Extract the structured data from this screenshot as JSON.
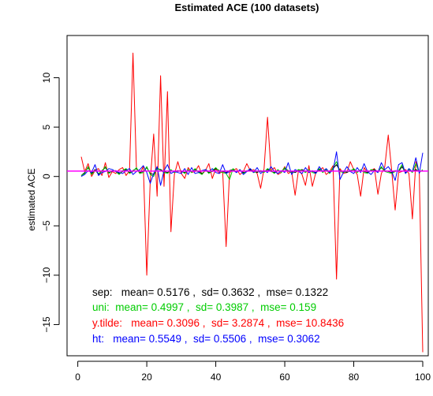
{
  "chart_data": {
    "type": "line",
    "title": "Estimated ACE (100 datasets)",
    "xlabel": "",
    "ylabel": "estimated ACE",
    "xlim": [
      1,
      100
    ],
    "ylim": [
      -18,
      13
    ],
    "x_ticks": [
      0,
      20,
      40,
      60,
      80,
      100
    ],
    "y_ticks": [
      -15,
      -10,
      -5,
      0,
      5,
      10
    ],
    "reference_line": {
      "y": 0.55,
      "color": "#ff00ff"
    },
    "series": [
      {
        "name": "sep",
        "color": "#000000",
        "values": [
          0.1,
          0.4,
          0.9,
          0.3,
          0.7,
          0.2,
          0.6,
          0.9,
          0.4,
          0.5,
          0.6,
          0.3,
          0.5,
          0.7,
          0.4,
          0.6,
          0.8,
          0.4,
          0.5,
          0.9,
          0.3,
          0.2,
          0.8,
          0.7,
          0.5,
          0.4,
          0.6,
          0.5,
          0.6,
          0.5,
          0.4,
          0.6,
          0.5,
          0.7,
          0.5,
          0.3,
          0.6,
          0.4,
          0.5,
          0.8,
          0.6,
          0.5,
          0.4,
          0.6,
          0.7,
          0.5,
          0.6,
          0.4,
          0.5,
          0.7,
          0.5,
          0.4,
          0.6,
          0.5,
          0.7,
          0.5,
          0.4,
          0.6,
          0.5,
          0.8,
          0.6,
          0.5,
          0.4,
          0.6,
          0.7,
          0.5,
          0.6,
          0.5,
          0.4,
          0.7,
          0.5,
          0.6,
          0.4,
          0.8,
          1.2,
          0.6,
          0.5,
          0.4,
          0.6,
          0.7,
          0.5,
          0.6,
          0.5,
          0.4,
          0.6,
          0.7,
          0.5,
          0.9,
          0.6,
          0.5,
          0.4,
          0.6,
          0.5,
          1.0,
          0.4,
          0.6,
          0.5,
          0.7,
          0.5,
          0.6
        ]
      },
      {
        "name": "uni",
        "color": "#00cc00",
        "values": [
          0.1,
          0.3,
          1.0,
          0.2,
          0.6,
          0.3,
          0.5,
          1.0,
          0.3,
          0.6,
          0.5,
          0.2,
          0.6,
          0.8,
          0.3,
          0.5,
          0.9,
          0.3,
          0.4,
          1.0,
          0.2,
          0.0,
          0.9,
          0.6,
          0.4,
          0.3,
          0.7,
          0.4,
          0.5,
          0.6,
          0.3,
          0.7,
          0.4,
          0.8,
          0.4,
          0.2,
          0.7,
          0.3,
          0.6,
          0.9,
          0.5,
          0.4,
          0.3,
          -0.3,
          0.8,
          0.4,
          0.7,
          0.3,
          0.6,
          0.6,
          0.4,
          0.5,
          0.5,
          0.4,
          0.8,
          0.6,
          0.3,
          0.7,
          0.4,
          0.9,
          0.5,
          0.4,
          0.5,
          0.7,
          0.6,
          0.4,
          0.7,
          0.4,
          0.3,
          0.8,
          0.4,
          0.7,
          0.3,
          0.9,
          1.5,
          0.5,
          0.4,
          0.5,
          0.5,
          0.8,
          0.4,
          0.7,
          0.4,
          0.3,
          0.7,
          0.6,
          0.4,
          1.0,
          0.5,
          0.4,
          0.3,
          0.5,
          0.6,
          1.2,
          0.3,
          0.7,
          0.4,
          1.3,
          0.4,
          0.7
        ]
      },
      {
        "name": "y.tilde",
        "color": "#ff0000",
        "values": [
          2.0,
          0.5,
          1.3,
          0.0,
          0.6,
          0.8,
          0.1,
          1.4,
          -0.1,
          0.5,
          0.3,
          0.7,
          0.9,
          0.1,
          0.6,
          12.5,
          0.8,
          0.3,
          1.0,
          -10.0,
          -0.5,
          4.3,
          -2.0,
          10.2,
          -1.0,
          8.6,
          -5.6,
          0.2,
          1.5,
          0.3,
          -0.2,
          0.9,
          0.4,
          0.5,
          1.1,
          0.2,
          0.6,
          1.3,
          -0.2,
          0.8,
          0.3,
          0.5,
          -7.1,
          0.4,
          0.6,
          0.8,
          0.2,
          0.5,
          1.3,
          0.6,
          0.7,
          0.3,
          -1.2,
          0.8,
          6.0,
          0.6,
          0.9,
          0.2,
          0.4,
          1.0,
          0.3,
          0.5,
          -1.9,
          0.7,
          0.2,
          -0.9,
          1.1,
          -1.0,
          0.4,
          0.6,
          0.9,
          0.2,
          0.5,
          1.1,
          -10.4,
          0.8,
          0.3,
          0.4,
          1.5,
          0.7,
          0.2,
          -2.0,
          0.9,
          0.4,
          0.6,
          0.8,
          -1.8,
          0.3,
          1.0,
          4.2,
          0.6,
          -3.4,
          0.4,
          0.5,
          0.7,
          0.3,
          -4.3,
          1.5,
          0.4,
          -17.8
        ]
      },
      {
        "name": "ht",
        "color": "#0000ff",
        "values": [
          0.0,
          0.2,
          0.6,
          0.4,
          1.2,
          0.1,
          0.4,
          0.5,
          0.8,
          0.7,
          0.5,
          0.4,
          0.3,
          0.6,
          0.8,
          0.2,
          0.5,
          0.7,
          1.1,
          0.4,
          -0.7,
          0.3,
          1.0,
          -0.9,
          0.6,
          1.2,
          0.3,
          0.5,
          0.4,
          0.3,
          0.8,
          0.2,
          0.9,
          0.3,
          0.4,
          0.6,
          0.7,
          0.5,
          0.8,
          0.4,
          0.3,
          1.2,
          0.3,
          0.5,
          0.6,
          0.4,
          0.7,
          0.2,
          0.5,
          0.8,
          0.4,
          0.9,
          0.3,
          0.6,
          0.4,
          1.0,
          0.5,
          0.3,
          0.6,
          0.4,
          1.4,
          0.2,
          0.7,
          0.5,
          0.3,
          0.9,
          0.4,
          0.6,
          0.3,
          1.0,
          0.5,
          0.8,
          0.4,
          0.6,
          2.5,
          -0.3,
          0.4,
          1.0,
          0.5,
          0.3,
          0.9,
          0.4,
          1.3,
          0.5,
          0.2,
          0.6,
          0.4,
          1.4,
          0.7,
          1.0,
          0.5,
          -0.4,
          1.2,
          1.4,
          0.3,
          0.8,
          0.5,
          1.9,
          0.3,
          2.4
        ]
      }
    ],
    "annotations": [
      {
        "text": "sep:   mean= 0.5176 ,  sd= 0.3632 ,  mse= 0.1322",
        "color": "#000000"
      },
      {
        "text": "uni:  mean= 0.4997 ,  sd= 0.3987 ,  mse= 0.159",
        "color": "#00cc00"
      },
      {
        "text": "y.tilde:   mean= 0.3096 ,  sd= 3.2874 ,  mse= 10.8436",
        "color": "#ff0000"
      },
      {
        "text": "ht:   mean= 0.5549 ,  sd= 0.5506 ,  mse= 0.3062",
        "color": "#0000ff"
      }
    ]
  }
}
